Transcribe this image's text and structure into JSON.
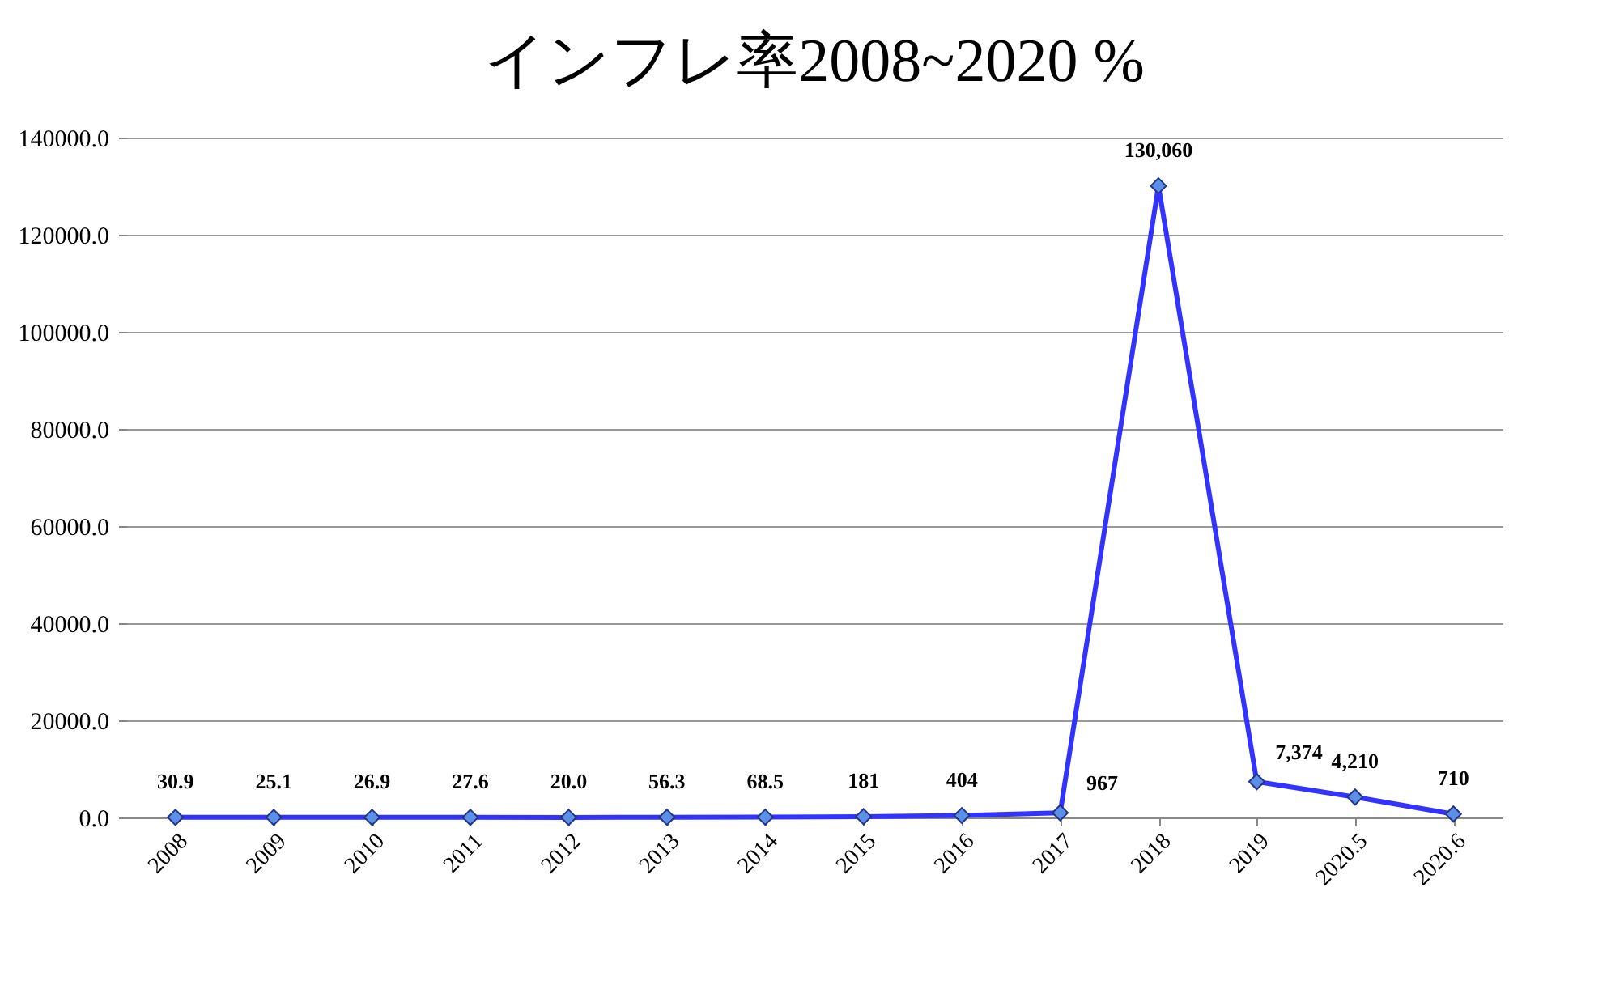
{
  "chart_data": {
    "type": "line",
    "title": "インフレ率2008~2020 %",
    "categories": [
      "2008",
      "2009",
      "2010",
      "2011",
      "2012",
      "2013",
      "2014",
      "2015",
      "2016",
      "2017",
      "2018",
      "2019",
      "2020.5",
      "2020.6"
    ],
    "series": [
      {
        "color": "#3333ff",
        "values": [
          30.9,
          25.1,
          26.9,
          27.6,
          20.0,
          56.3,
          68.5,
          181,
          404,
          967,
          130060,
          7374,
          4210,
          710
        ],
        "value_labels": [
          "30.9",
          "25.1",
          "26.9",
          "27.6",
          "20.0",
          "56.3",
          "68.5",
          "181",
          "404",
          "967",
          "130,060",
          "7,374",
          "4,210",
          "710"
        ]
      }
    ],
    "ylim": [
      0,
      140000
    ],
    "yticks": [
      {
        "value": 0,
        "label": "0.0"
      },
      {
        "value": 20000,
        "label": "20000.0"
      },
      {
        "value": 40000,
        "label": "40000.0"
      },
      {
        "value": 60000,
        "label": "60000.0"
      },
      {
        "value": 80000,
        "label": "80000.0"
      },
      {
        "value": 100000,
        "label": "100000.0"
      },
      {
        "value": 120000,
        "label": "120000.0"
      },
      {
        "value": 140000,
        "label": "140000.0"
      }
    ],
    "grid": "y",
    "marker": "diamond",
    "line_style": "solid"
  }
}
